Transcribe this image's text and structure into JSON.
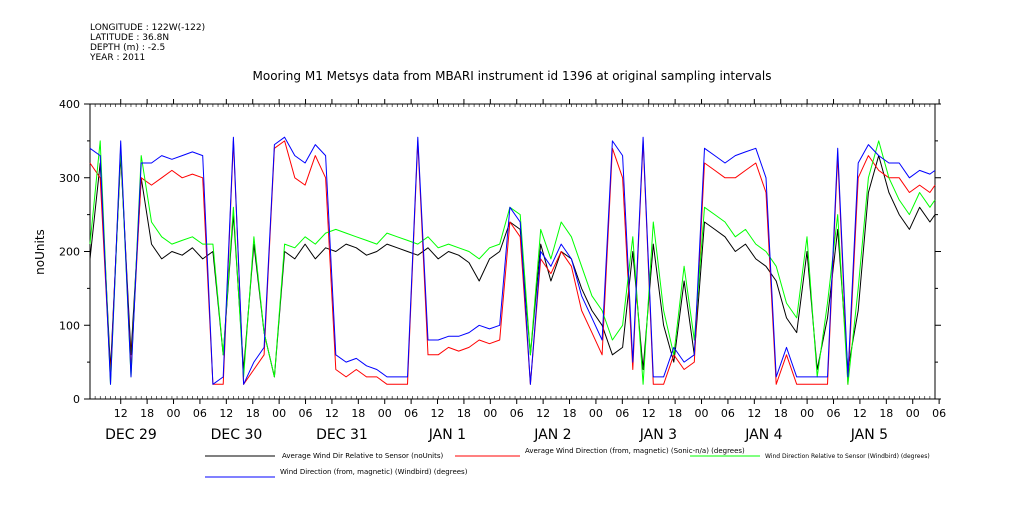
{
  "header": {
    "meta_lines": [
      "LONGITUDE : 122W(-122)",
      "LATITUDE : 36.8N",
      "DEPTH (m) : -2.5",
      "YEAR : 2011"
    ],
    "title": "Mooring M1 Metsys data from MBARI instrument id 1396 at original sampling intervals"
  },
  "chart_data": {
    "type": "line",
    "title": "Mooring M1 Metsys data from MBARI instrument id 1396 at original sampling intervals",
    "xlabel": "",
    "ylabel": "noUnits",
    "ylim": [
      0,
      400
    ],
    "yticks": [
      "0",
      "100",
      "200",
      "300",
      "400"
    ],
    "x_hour_ticks": [
      "12",
      "18",
      "00",
      "06",
      "12",
      "18",
      "00",
      "06",
      "12",
      "18",
      "00",
      "06",
      "12",
      "18",
      "00",
      "06",
      "12",
      "18",
      "00",
      "06",
      "12",
      "18",
      "00",
      "06",
      "12",
      "18",
      "00",
      "06",
      "12",
      "18",
      "00",
      "06"
    ],
    "x_day_labels": [
      "DEC 29",
      "DEC 30",
      "DEC 31",
      "JAN 1",
      "JAN 2",
      "JAN 3",
      "JAN 4",
      "JAN 5"
    ],
    "xlim_hours": [
      0,
      165
    ],
    "grid": false,
    "legend_position": "bottom",
    "series": [
      {
        "name": "Average Wind Dir Relative to Sensor (noUnits)",
        "color": "#000000",
        "x": [
          0,
          2,
          4,
          6,
          8,
          10,
          12,
          14,
          16,
          18,
          20,
          22,
          24,
          26,
          28,
          30,
          32,
          34,
          36,
          38,
          40,
          42,
          44,
          46,
          48,
          50,
          52,
          54,
          56,
          58,
          60,
          62,
          64,
          66,
          68,
          70,
          72,
          74,
          76,
          78,
          80,
          82,
          84,
          86,
          88,
          90,
          92,
          94,
          96,
          98,
          100,
          102,
          104,
          106,
          108,
          110,
          112,
          114,
          116,
          118,
          120,
          122,
          124,
          126,
          128,
          130,
          132,
          134,
          136,
          138,
          140,
          142,
          144,
          146,
          148,
          150,
          152,
          154,
          156,
          158,
          160,
          162,
          164,
          165
        ],
        "values": [
          190,
          320,
          40,
          330,
          60,
          300,
          210,
          190,
          200,
          195,
          205,
          190,
          200,
          60,
          250,
          40,
          210,
          90,
          30,
          200,
          190,
          210,
          190,
          205,
          200,
          210,
          205,
          195,
          200,
          210,
          205,
          200,
          195,
          205,
          190,
          200,
          195,
          185,
          160,
          190,
          200,
          240,
          230,
          60,
          210,
          160,
          200,
          190,
          150,
          120,
          100,
          60,
          70,
          200,
          40,
          210,
          100,
          50,
          160,
          60,
          240,
          230,
          220,
          200,
          210,
          190,
          180,
          160,
          110,
          90,
          200,
          40,
          110,
          230,
          40,
          120,
          280,
          330,
          280,
          250,
          230,
          260,
          240,
          250
        ]
      },
      {
        "name": "Average Wind Direction (from, magnetic) (Sonic-n/a) (degrees)",
        "color": "#ff0000",
        "x": [
          0,
          2,
          4,
          6,
          8,
          10,
          12,
          14,
          16,
          18,
          20,
          22,
          24,
          26,
          28,
          30,
          32,
          34,
          36,
          38,
          40,
          42,
          44,
          46,
          48,
          50,
          52,
          54,
          56,
          58,
          60,
          62,
          64,
          66,
          68,
          70,
          72,
          74,
          76,
          78,
          80,
          82,
          84,
          86,
          88,
          90,
          92,
          94,
          96,
          98,
          100,
          102,
          104,
          106,
          108,
          110,
          112,
          114,
          116,
          118,
          120,
          122,
          124,
          126,
          128,
          130,
          132,
          134,
          136,
          138,
          140,
          142,
          144,
          146,
          148,
          150,
          152,
          154,
          156,
          158,
          160,
          162,
          164,
          165
        ],
        "values": [
          320,
          300,
          30,
          340,
          40,
          300,
          290,
          300,
          310,
          300,
          305,
          300,
          20,
          20,
          350,
          20,
          40,
          60,
          340,
          350,
          300,
          290,
          330,
          300,
          40,
          30,
          40,
          30,
          30,
          20,
          20,
          20,
          350,
          60,
          60,
          70,
          65,
          70,
          80,
          75,
          80,
          240,
          220,
          20,
          190,
          170,
          200,
          180,
          120,
          90,
          60,
          340,
          300,
          40,
          350,
          20,
          20,
          60,
          40,
          50,
          320,
          310,
          300,
          300,
          310,
          320,
          280,
          20,
          60,
          20,
          20,
          20,
          20,
          330,
          20,
          300,
          330,
          310,
          300,
          300,
          280,
          290,
          280,
          290
        ]
      },
      {
        "name": "Wind Direction Relative to Sensor (Windbird) (degrees)",
        "color": "#00ff00",
        "x": [
          0,
          2,
          4,
          6,
          8,
          10,
          12,
          14,
          16,
          18,
          20,
          22,
          24,
          26,
          28,
          30,
          32,
          34,
          36,
          38,
          40,
          42,
          44,
          46,
          48,
          50,
          52,
          54,
          56,
          58,
          60,
          62,
          64,
          66,
          68,
          70,
          72,
          74,
          76,
          78,
          80,
          82,
          84,
          86,
          88,
          90,
          92,
          94,
          96,
          98,
          100,
          102,
          104,
          106,
          108,
          110,
          112,
          114,
          116,
          118,
          120,
          122,
          124,
          126,
          128,
          130,
          132,
          134,
          136,
          138,
          140,
          142,
          144,
          146,
          148,
          150,
          152,
          154,
          156,
          158,
          160,
          162,
          164,
          165
        ],
        "values": [
          210,
          350,
          20,
          340,
          30,
          330,
          240,
          220,
          210,
          215,
          220,
          210,
          210,
          60,
          260,
          30,
          220,
          90,
          30,
          210,
          205,
          220,
          210,
          225,
          230,
          225,
          220,
          215,
          210,
          225,
          220,
          215,
          210,
          220,
          205,
          210,
          205,
          200,
          190,
          205,
          210,
          260,
          250,
          60,
          230,
          190,
          240,
          220,
          180,
          140,
          120,
          80,
          100,
          220,
          20,
          240,
          120,
          60,
          180,
          80,
          260,
          250,
          240,
          220,
          230,
          210,
          200,
          180,
          130,
          110,
          220,
          30,
          130,
          250,
          20,
          150,
          300,
          350,
          300,
          270,
          250,
          280,
          260,
          270
        ]
      },
      {
        "name": "Wind Direction (from, magnetic) (Windbird) (degrees)",
        "color": "#0000ff",
        "x": [
          0,
          2,
          4,
          6,
          8,
          10,
          12,
          14,
          16,
          18,
          20,
          22,
          24,
          26,
          28,
          30,
          32,
          34,
          36,
          38,
          40,
          42,
          44,
          46,
          48,
          50,
          52,
          54,
          56,
          58,
          60,
          62,
          64,
          66,
          68,
          70,
          72,
          74,
          76,
          78,
          80,
          82,
          84,
          86,
          88,
          90,
          92,
          94,
          96,
          98,
          100,
          102,
          104,
          106,
          108,
          110,
          112,
          114,
          116,
          118,
          120,
          122,
          124,
          126,
          128,
          130,
          132,
          134,
          136,
          138,
          140,
          142,
          144,
          146,
          148,
          150,
          152,
          154,
          156,
          158,
          160,
          162,
          164,
          165
        ],
        "values": [
          340,
          330,
          20,
          350,
          30,
          320,
          320,
          330,
          325,
          330,
          335,
          330,
          20,
          30,
          355,
          20,
          50,
          70,
          345,
          355,
          330,
          320,
          345,
          330,
          60,
          50,
          55,
          45,
          40,
          30,
          30,
          30,
          355,
          80,
          80,
          85,
          85,
          90,
          100,
          95,
          100,
          260,
          240,
          20,
          200,
          180,
          210,
          190,
          140,
          110,
          80,
          350,
          330,
          50,
          355,
          30,
          30,
          70,
          50,
          60,
          340,
          330,
          320,
          330,
          335,
          340,
          300,
          30,
          70,
          30,
          30,
          30,
          30,
          340,
          30,
          320,
          345,
          330,
          320,
          320,
          300,
          310,
          305,
          310
        ]
      }
    ]
  }
}
